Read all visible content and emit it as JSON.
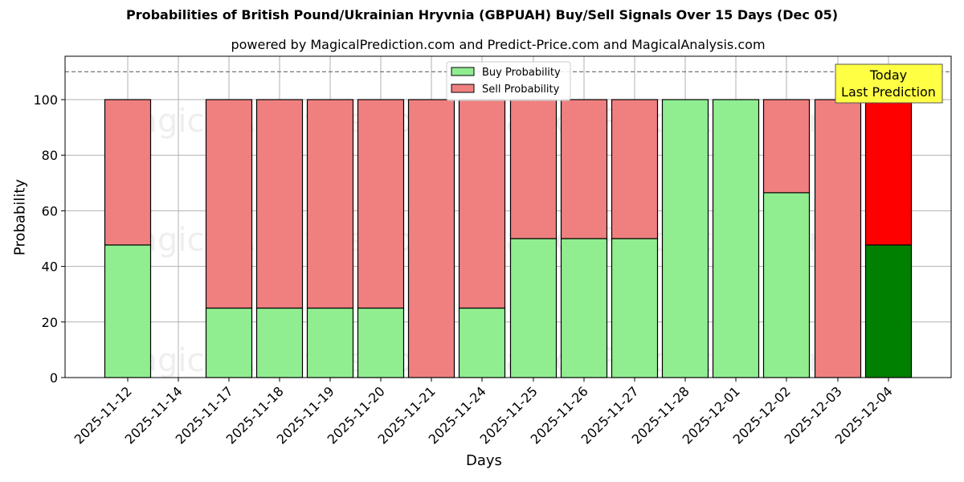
{
  "title": "Probabilities of British Pound/Ukrainian Hryvnia (GBPUAH) Buy/Sell Signals Over 15 Days (Dec 05)",
  "subtitle": "powered by MagicalPrediction.com and Predict-Price.com and MagicalAnalysis.com",
  "annotation": "Today\nLast Prediction",
  "watermarks": [
    "MagicalAnalysis.com",
    "MagicalPrediction.com"
  ],
  "colors": {
    "buy": "#90ee90",
    "sell": "#f08080",
    "buy_today": "#008000",
    "sell_today": "#ff0000",
    "annotation_bg": "#ffff44"
  },
  "chart_data": {
    "type": "bar",
    "stacked": true,
    "title": "Probabilities of British Pound/Ukrainian Hryvnia (GBPUAH) Buy/Sell Signals Over 15 Days (Dec 05)",
    "xlabel": "Days",
    "ylabel": "Probability",
    "ylim": [
      0,
      115
    ],
    "yticks": [
      0,
      20,
      40,
      60,
      80,
      100
    ],
    "reference_line": 110,
    "grid": true,
    "legend_position": "upper center",
    "categories": [
      "2025-11-12",
      "2025-11-14",
      "2025-11-17",
      "2025-11-18",
      "2025-11-19",
      "2025-11-20",
      "2025-11-21",
      "2025-11-24",
      "2025-11-25",
      "2025-11-26",
      "2025-11-27",
      "2025-11-28",
      "2025-12-01",
      "2025-12-02",
      "2025-12-03",
      "2025-12-04"
    ],
    "series": [
      {
        "name": "Buy Probability",
        "values": [
          47.7,
          null,
          25,
          25,
          25,
          25,
          0,
          25,
          50,
          50,
          50,
          100,
          100,
          66.5,
          0,
          47.7
        ]
      },
      {
        "name": "Sell Probability",
        "values": [
          52.3,
          null,
          75,
          75,
          75,
          75,
          100,
          75,
          50,
          50,
          50,
          0,
          0,
          33.5,
          100,
          52.3
        ]
      }
    ]
  }
}
